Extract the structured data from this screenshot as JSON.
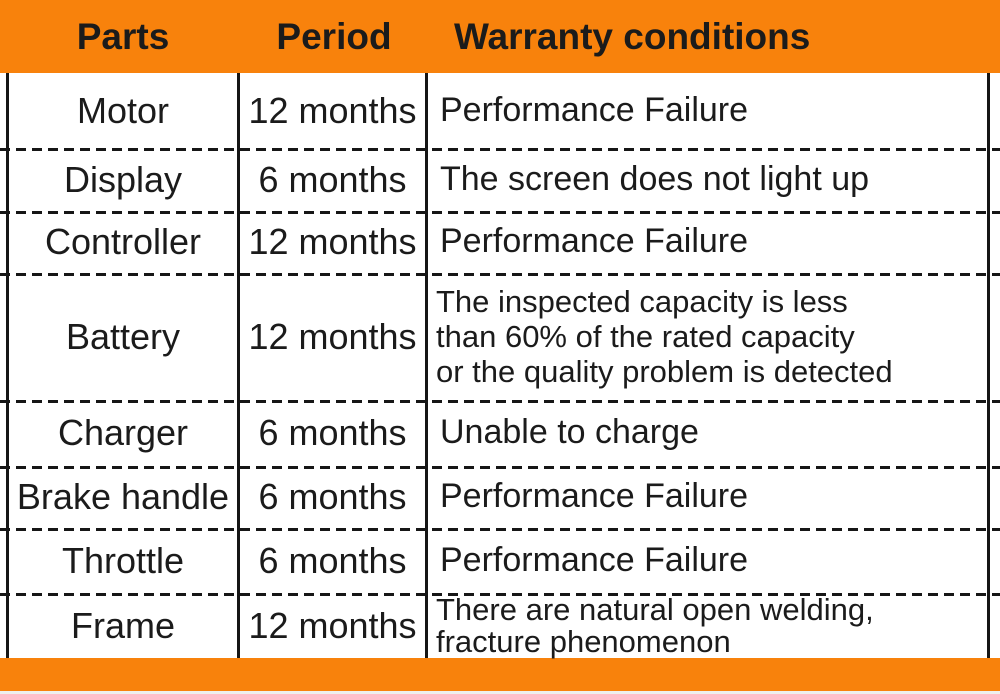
{
  "title": "Warranty table",
  "colors": {
    "accent": "#F8820C",
    "line": "#161616",
    "text": "#1b1b1b",
    "background": "#ffffff"
  },
  "header": {
    "parts": "Parts",
    "period": "Period",
    "conditions": "Warranty conditions"
  },
  "rows": [
    {
      "part": "Motor",
      "period": "12 months",
      "condition": "Performance Failure"
    },
    {
      "part": "Display",
      "period": "6 months",
      "condition": "The screen does not light up"
    },
    {
      "part": "Controller",
      "period": "12 months",
      "condition": "Performance Failure"
    },
    {
      "part": "Battery",
      "period": "12 months",
      "condition": "The inspected capacity is less\nthan 60% of the rated capacity\nor the quality problem is detected"
    },
    {
      "part": "Charger",
      "period": "6 months",
      "condition": "Unable to charge"
    },
    {
      "part": "Brake handle",
      "period": "6 months",
      "condition": "Performance Failure"
    },
    {
      "part": "Throttle",
      "period": "6 months",
      "condition": "Performance Failure"
    },
    {
      "part": "Frame",
      "period": "12 months",
      "condition": "There are natural open welding,\nfracture phenomenon"
    }
  ]
}
